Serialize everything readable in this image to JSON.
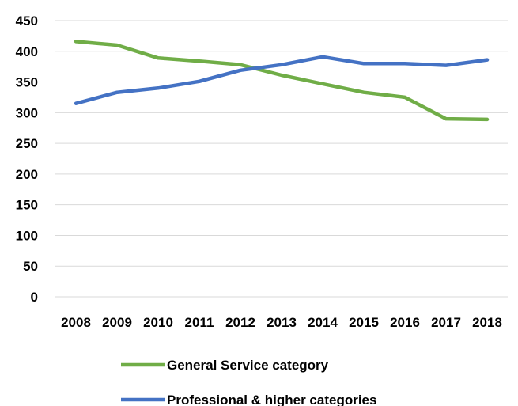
{
  "chart_data": {
    "type": "line",
    "title": "",
    "xlabel": "",
    "ylabel": "",
    "ylim": [
      0,
      450
    ],
    "y_ticks": [
      "0",
      "50",
      "100",
      "150",
      "200",
      "250",
      "300",
      "350",
      "400",
      "450"
    ],
    "categories": [
      "2008",
      "2009",
      "2010",
      "2011",
      "2012",
      "2013",
      "2014",
      "2015",
      "2016",
      "2017",
      "2018"
    ],
    "grid": "horizontal",
    "legend_position": "bottom",
    "series": [
      {
        "name": "General Service category",
        "color": "#70AD47",
        "values": [
          416,
          410,
          389,
          384,
          378,
          361,
          347,
          333,
          325,
          290,
          289
        ]
      },
      {
        "name": "Professional & higher categories",
        "color": "#4472C4",
        "values": [
          315,
          333,
          340,
          351,
          369,
          378,
          391,
          380,
          380,
          377,
          386
        ]
      }
    ]
  }
}
